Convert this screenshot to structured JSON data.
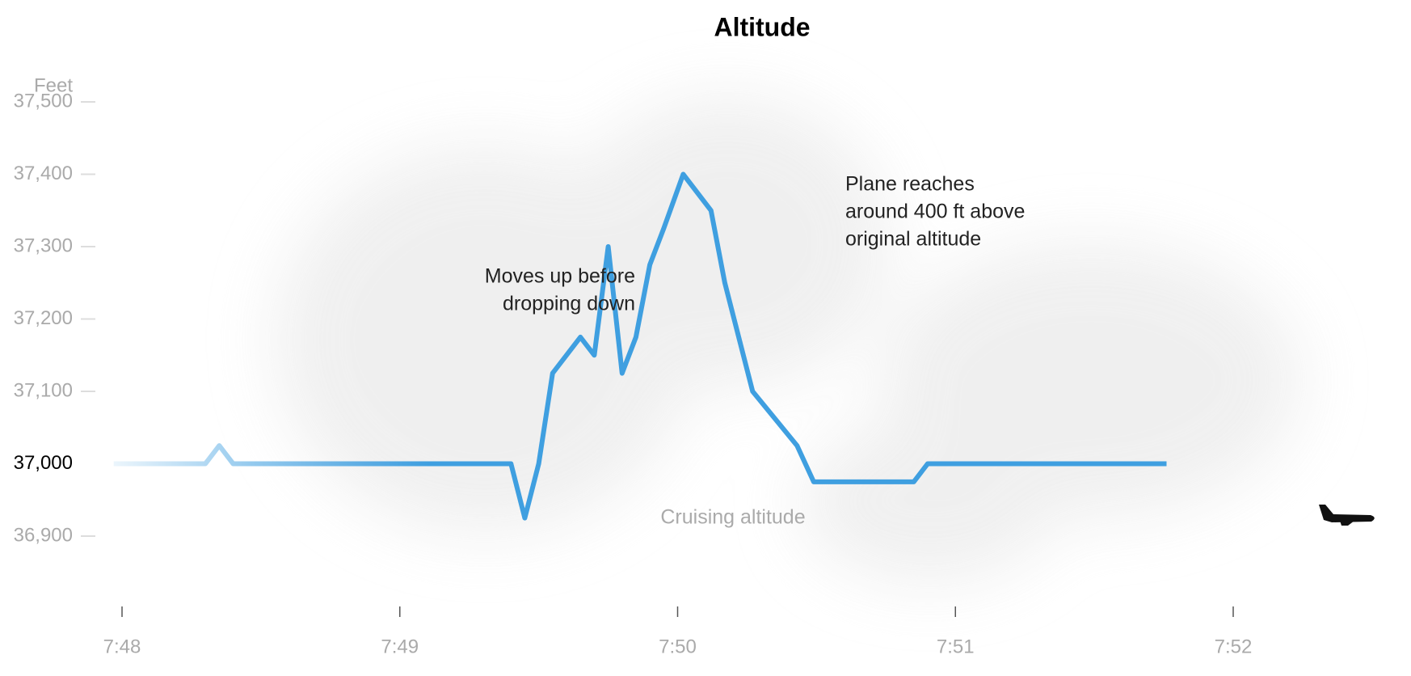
{
  "chart_data": {
    "type": "line",
    "title": "Altitude",
    "y_label": "Feet",
    "annotations": [
      {
        "lines": [
          "Moves up before",
          "dropping down"
        ]
      },
      {
        "lines": [
          "Plane reaches",
          "around 400 ft above",
          "original altitude"
        ]
      },
      {
        "lines": [
          "Cruising altitude"
        ]
      }
    ],
    "x": [
      -0.03,
      0.3,
      0.35,
      0.4,
      1.4,
      1.45,
      1.5,
      1.55,
      1.65,
      1.7,
      1.75,
      1.8,
      1.85,
      1.9,
      1.95,
      2.02,
      2.12,
      2.17,
      2.27,
      2.43,
      2.49,
      2.85,
      2.9,
      3.76
    ],
    "series": [
      {
        "name": "Altitude",
        "color": "#3f9fe0",
        "values": [
          37000,
          37000,
          37025,
          37000,
          37000,
          36925,
          37000,
          37125,
          37175,
          37150,
          37300,
          37125,
          37175,
          37275,
          37325,
          37400,
          37350,
          37250,
          37100,
          37025,
          36975,
          36975,
          37000,
          37000
        ]
      }
    ],
    "xlim": [
      0,
      4
    ],
    "xticks": [
      {
        "value": 0,
        "label": "7:48"
      },
      {
        "value": 1,
        "label": "7:49"
      },
      {
        "value": 2,
        "label": "7:50"
      },
      {
        "value": 3,
        "label": "7:51"
      },
      {
        "value": 4,
        "label": "7:52"
      }
    ],
    "ylim": [
      36900,
      37500
    ],
    "yticks": [
      {
        "value": 36900,
        "label": "36,900"
      },
      {
        "value": 37000,
        "label": "37,000"
      },
      {
        "value": 37100,
        "label": "37,100"
      },
      {
        "value": 37200,
        "label": "37,200"
      },
      {
        "value": 37300,
        "label": "37,300"
      },
      {
        "value": 37400,
        "label": "37,400"
      },
      {
        "value": 37500,
        "label": "37,500"
      }
    ],
    "highlight_ytick": 37000
  }
}
